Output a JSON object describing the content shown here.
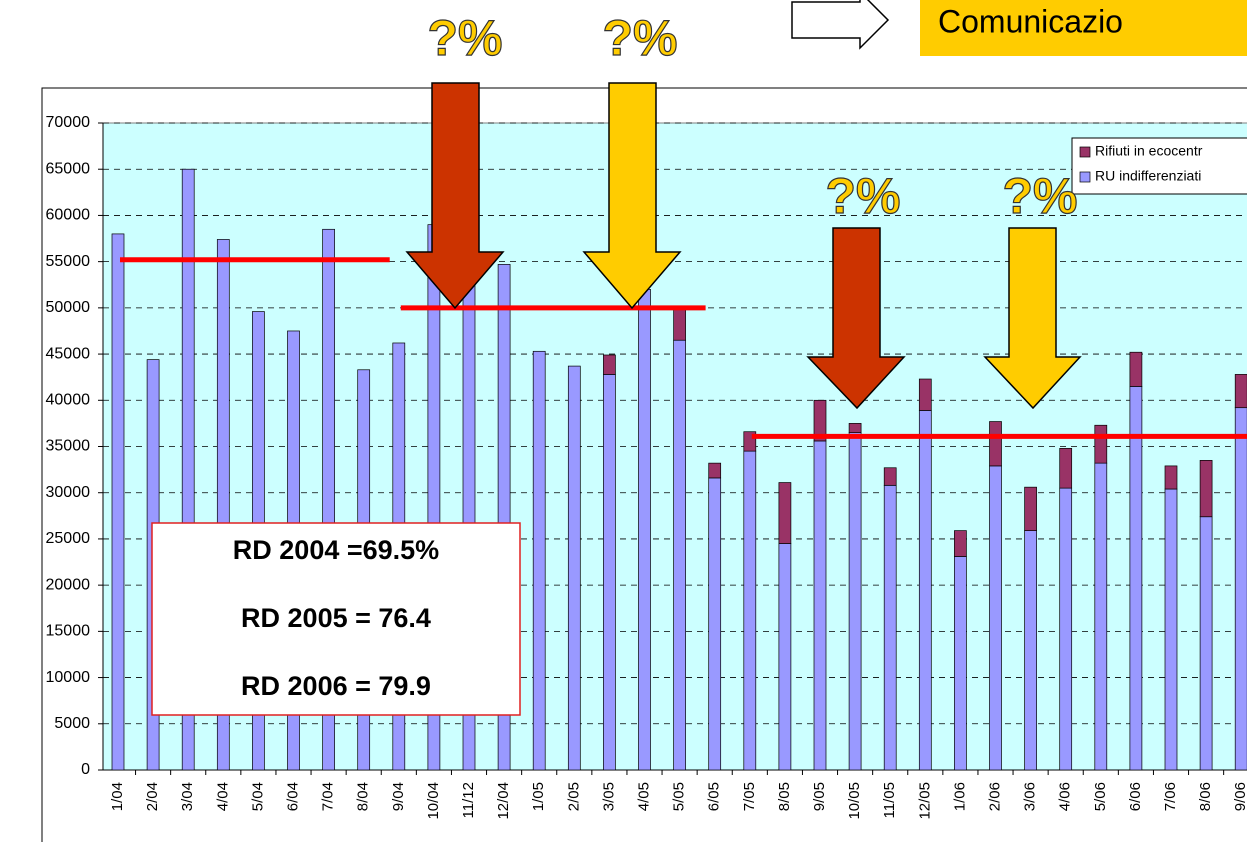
{
  "chart_data": {
    "type": "stacked-bar",
    "categories": [
      "1/04",
      "2/04",
      "3/04",
      "4/04",
      "5/04",
      "6/04",
      "7/04",
      "8/04",
      "9/04",
      "10/04",
      "11/12",
      "12/04",
      "1/05",
      "2/05",
      "3/05",
      "4/05",
      "5/05",
      "6/05",
      "7/05",
      "8/05",
      "9/05",
      "10/05",
      "11/05",
      "12/05",
      "1/06",
      "2/06",
      "3/06",
      "4/06",
      "5/06",
      "6/06",
      "7/06",
      "8/06",
      "9/06"
    ],
    "series": [
      {
        "name": "Rifiuti in ecocentr",
        "color": "#993366",
        "values": [
          null,
          null,
          null,
          null,
          null,
          null,
          null,
          null,
          null,
          null,
          null,
          null,
          null,
          null,
          2100,
          null,
          3700,
          1600,
          2100,
          6600,
          4400,
          1000,
          1900,
          3400,
          2800,
          4800,
          4700,
          4300,
          4100,
          3700,
          2500,
          6100,
          3600
        ]
      },
      {
        "name": "RU indifferenziati",
        "color": "#9999ff",
        "values": [
          58000,
          44400,
          65000,
          57400,
          49600,
          47500,
          58500,
          43300,
          46200,
          59000,
          54000,
          54700,
          45300,
          43700,
          42800,
          52000,
          46500,
          31600,
          34500,
          24500,
          35600,
          36500,
          30800,
          38900,
          23100,
          32900,
          25900,
          30500,
          33200,
          41500,
          30400,
          27400,
          39200
        ]
      }
    ],
    "ylim": [
      0,
      70000
    ],
    "yticks": [
      0,
      5000,
      10000,
      15000,
      20000,
      25000,
      30000,
      35000,
      40000,
      45000,
      50000,
      55000,
      60000,
      65000,
      70000
    ],
    "grid": true,
    "legend": "top-right",
    "reference_lines": [
      {
        "value": 55200,
        "from": "1/04",
        "to": "8/04",
        "color": "#ff0000"
      },
      {
        "value": 50000,
        "from": "9/04",
        "to": "5/05",
        "color": "#ff0000"
      },
      {
        "value": 36100,
        "from": "7/05",
        "to": "9/06",
        "color": "#ff0000"
      }
    ],
    "annotations": [
      "?%",
      "?%",
      "?%",
      "?%"
    ],
    "callout": "Comunicazio",
    "textbox": [
      "RD 2004 =69.5%",
      "RD 2005 = 76.4",
      "RD 2006 = 79.9"
    ]
  }
}
